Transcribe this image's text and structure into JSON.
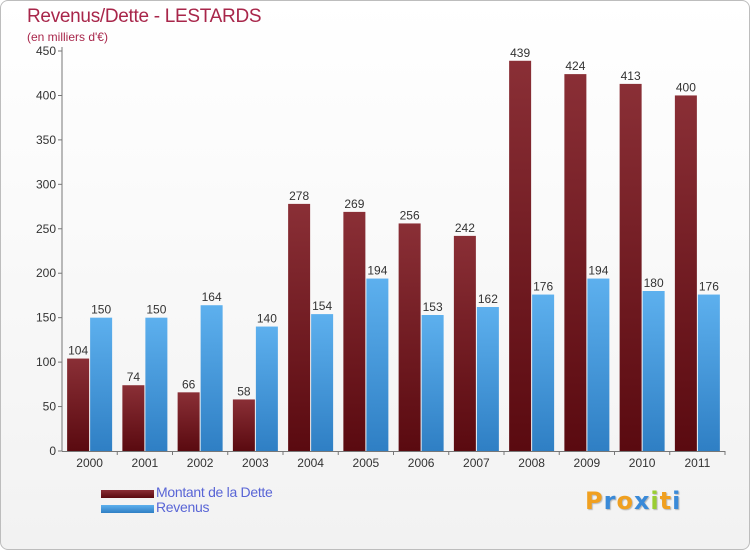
{
  "chart_data": {
    "type": "bar",
    "title": "Revenus/Dette - LESTARDS",
    "subtitle": "(en milliers d'€)",
    "categories": [
      "2000",
      "2001",
      "2002",
      "2003",
      "2004",
      "2005",
      "2006",
      "2007",
      "2008",
      "2009",
      "2010",
      "2011"
    ],
    "series": [
      {
        "name": "Montant de la Dette",
        "color": "#7a1f27",
        "values": [
          104,
          74,
          66,
          58,
          278,
          269,
          256,
          242,
          439,
          424,
          413,
          400
        ]
      },
      {
        "name": "Revenus",
        "color": "#4da6e8",
        "values": [
          150,
          150,
          164,
          140,
          154,
          194,
          153,
          162,
          176,
          194,
          180,
          176
        ]
      }
    ],
    "ylim": [
      0,
      450
    ],
    "yticks": [
      0,
      50,
      100,
      150,
      200,
      250,
      300,
      350,
      400,
      450
    ],
    "grid": false,
    "legend_position": "bottom-left"
  },
  "logo": {
    "letters": [
      "P",
      "r",
      "o",
      "x",
      "i",
      "t",
      "i"
    ],
    "colors": [
      "#f0a020",
      "#3a8ad8",
      "#f0a020",
      "#3a8ad8",
      "#9acd32",
      "#f0a020",
      "#3a8ad8"
    ]
  }
}
